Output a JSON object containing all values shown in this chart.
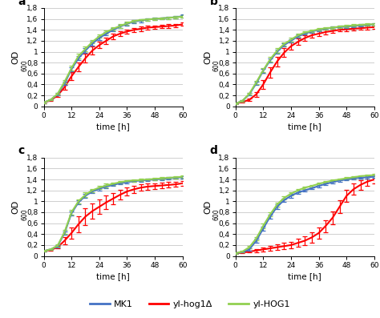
{
  "time_a_mk1": [
    0,
    3,
    6,
    9,
    12,
    15,
    18,
    21,
    24,
    27,
    30,
    33,
    36,
    39,
    42,
    45,
    48,
    51,
    54,
    57,
    60
  ],
  "time_a_hog1": [
    0,
    3,
    6,
    9,
    12,
    15,
    18,
    21,
    24,
    27,
    30,
    33,
    36,
    39,
    42,
    45,
    48,
    51,
    54,
    57,
    60
  ],
  "time_a_HOG1": [
    0,
    3,
    6,
    9,
    12,
    15,
    18,
    21,
    24,
    27,
    30,
    33,
    36,
    39,
    42,
    45,
    48,
    51,
    54,
    57,
    60
  ],
  "panels": {
    "a": {
      "MK1": {
        "y": [
          0.07,
          0.12,
          0.22,
          0.42,
          0.68,
          0.88,
          1.02,
          1.15,
          1.25,
          1.33,
          1.4,
          1.46,
          1.51,
          1.55,
          1.57,
          1.59,
          1.6,
          1.61,
          1.62,
          1.63,
          1.65
        ],
        "err": [
          0.01,
          0.01,
          0.02,
          0.03,
          0.04,
          0.04,
          0.04,
          0.04,
          0.03,
          0.03,
          0.03,
          0.03,
          0.03,
          0.03,
          0.03,
          0.02,
          0.02,
          0.02,
          0.02,
          0.02,
          0.03
        ]
      },
      "hog1": {
        "y": [
          0.07,
          0.11,
          0.2,
          0.35,
          0.55,
          0.72,
          0.88,
          1.02,
          1.12,
          1.2,
          1.28,
          1.33,
          1.37,
          1.4,
          1.42,
          1.44,
          1.45,
          1.46,
          1.47,
          1.48,
          1.5
        ],
        "err": [
          0.01,
          0.01,
          0.02,
          0.04,
          0.07,
          0.08,
          0.08,
          0.07,
          0.06,
          0.06,
          0.05,
          0.05,
          0.04,
          0.04,
          0.04,
          0.03,
          0.03,
          0.03,
          0.03,
          0.03,
          0.03
        ]
      },
      "HOG1": {
        "y": [
          0.07,
          0.12,
          0.23,
          0.45,
          0.7,
          0.92,
          1.05,
          1.18,
          1.28,
          1.36,
          1.42,
          1.47,
          1.52,
          1.56,
          1.58,
          1.59,
          1.6,
          1.61,
          1.62,
          1.63,
          1.64
        ],
        "err": [
          0.01,
          0.01,
          0.02,
          0.03,
          0.04,
          0.04,
          0.04,
          0.03,
          0.03,
          0.03,
          0.03,
          0.03,
          0.03,
          0.02,
          0.02,
          0.02,
          0.02,
          0.02,
          0.02,
          0.02,
          0.02
        ]
      }
    },
    "b": {
      "MK1": {
        "y": [
          0.05,
          0.1,
          0.22,
          0.42,
          0.65,
          0.84,
          1.0,
          1.12,
          1.2,
          1.28,
          1.33,
          1.37,
          1.4,
          1.42,
          1.44,
          1.45,
          1.46,
          1.47,
          1.48,
          1.49,
          1.5
        ],
        "err": [
          0.01,
          0.01,
          0.02,
          0.03,
          0.04,
          0.04,
          0.04,
          0.03,
          0.03,
          0.03,
          0.02,
          0.02,
          0.02,
          0.02,
          0.02,
          0.02,
          0.02,
          0.02,
          0.02,
          0.02,
          0.02
        ]
      },
      "hog1": {
        "y": [
          0.05,
          0.08,
          0.12,
          0.22,
          0.4,
          0.62,
          0.82,
          0.98,
          1.1,
          1.18,
          1.25,
          1.3,
          1.33,
          1.36,
          1.38,
          1.4,
          1.41,
          1.42,
          1.43,
          1.44,
          1.45
        ],
        "err": [
          0.01,
          0.01,
          0.02,
          0.04,
          0.08,
          0.1,
          0.09,
          0.08,
          0.07,
          0.06,
          0.05,
          0.05,
          0.04,
          0.04,
          0.04,
          0.03,
          0.03,
          0.03,
          0.03,
          0.03,
          0.03
        ]
      },
      "HOG1": {
        "y": [
          0.05,
          0.1,
          0.23,
          0.44,
          0.66,
          0.86,
          1.02,
          1.14,
          1.22,
          1.3,
          1.35,
          1.38,
          1.41,
          1.43,
          1.44,
          1.46,
          1.47,
          1.48,
          1.49,
          1.5,
          1.5
        ],
        "err": [
          0.01,
          0.01,
          0.02,
          0.03,
          0.04,
          0.04,
          0.04,
          0.03,
          0.03,
          0.03,
          0.02,
          0.02,
          0.02,
          0.02,
          0.02,
          0.02,
          0.02,
          0.02,
          0.02,
          0.02,
          0.02
        ]
      }
    },
    "c": {
      "MK1": {
        "y": [
          0.09,
          0.12,
          0.18,
          0.42,
          0.78,
          0.98,
          1.1,
          1.18,
          1.23,
          1.27,
          1.3,
          1.33,
          1.35,
          1.37,
          1.38,
          1.39,
          1.4,
          1.41,
          1.42,
          1.43,
          1.44
        ],
        "err": [
          0.01,
          0.01,
          0.02,
          0.03,
          0.04,
          0.04,
          0.04,
          0.03,
          0.03,
          0.03,
          0.02,
          0.02,
          0.02,
          0.02,
          0.02,
          0.02,
          0.02,
          0.02,
          0.02,
          0.02,
          0.02
        ]
      },
      "hog1": {
        "y": [
          0.09,
          0.11,
          0.16,
          0.28,
          0.42,
          0.58,
          0.72,
          0.82,
          0.9,
          0.98,
          1.05,
          1.12,
          1.18,
          1.22,
          1.25,
          1.27,
          1.28,
          1.29,
          1.3,
          1.31,
          1.33
        ],
        "err": [
          0.01,
          0.01,
          0.02,
          0.06,
          0.1,
          0.14,
          0.15,
          0.14,
          0.13,
          0.12,
          0.1,
          0.09,
          0.08,
          0.07,
          0.06,
          0.06,
          0.05,
          0.05,
          0.05,
          0.04,
          0.04
        ]
      },
      "HOG1": {
        "y": [
          0.09,
          0.12,
          0.19,
          0.44,
          0.8,
          1.0,
          1.12,
          1.2,
          1.25,
          1.29,
          1.32,
          1.35,
          1.37,
          1.38,
          1.39,
          1.4,
          1.41,
          1.42,
          1.43,
          1.44,
          1.45
        ],
        "err": [
          0.01,
          0.01,
          0.02,
          0.03,
          0.04,
          0.04,
          0.04,
          0.03,
          0.03,
          0.03,
          0.02,
          0.02,
          0.02,
          0.02,
          0.02,
          0.02,
          0.02,
          0.02,
          0.02,
          0.02,
          0.02
        ]
      }
    },
    "d": {
      "MK1": {
        "y": [
          0.05,
          0.07,
          0.12,
          0.28,
          0.5,
          0.72,
          0.9,
          1.02,
          1.1,
          1.16,
          1.2,
          1.24,
          1.28,
          1.32,
          1.35,
          1.38,
          1.4,
          1.42,
          1.43,
          1.44,
          1.45
        ],
        "err": [
          0.01,
          0.01,
          0.02,
          0.03,
          0.04,
          0.04,
          0.04,
          0.03,
          0.03,
          0.03,
          0.02,
          0.02,
          0.02,
          0.02,
          0.02,
          0.02,
          0.02,
          0.02,
          0.02,
          0.02,
          0.02
        ]
      },
      "hog1": {
        "y": [
          0.05,
          0.06,
          0.08,
          0.1,
          0.12,
          0.14,
          0.16,
          0.18,
          0.2,
          0.24,
          0.28,
          0.34,
          0.42,
          0.55,
          0.7,
          0.9,
          1.1,
          1.22,
          1.3,
          1.36,
          1.4
        ],
        "err": [
          0.01,
          0.01,
          0.02,
          0.03,
          0.04,
          0.05,
          0.05,
          0.06,
          0.06,
          0.07,
          0.08,
          0.09,
          0.1,
          0.11,
          0.12,
          0.12,
          0.11,
          0.1,
          0.09,
          0.08,
          0.08
        ]
      },
      "HOG1": {
        "y": [
          0.05,
          0.08,
          0.16,
          0.32,
          0.55,
          0.76,
          0.94,
          1.06,
          1.14,
          1.2,
          1.25,
          1.28,
          1.32,
          1.35,
          1.38,
          1.4,
          1.42,
          1.44,
          1.46,
          1.47,
          1.48
        ],
        "err": [
          0.01,
          0.01,
          0.02,
          0.03,
          0.04,
          0.04,
          0.04,
          0.03,
          0.03,
          0.03,
          0.02,
          0.02,
          0.02,
          0.02,
          0.02,
          0.02,
          0.02,
          0.02,
          0.02,
          0.02,
          0.02
        ]
      }
    }
  },
  "colors": {
    "MK1": "#4472C4",
    "hog1": "#FF0000",
    "HOG1": "#92D050"
  },
  "legend_labels": {
    "MK1": "MK1",
    "hog1": "yl-hog1Δ",
    "HOG1": "yl-HOG1"
  },
  "xlabel": "time [h]",
  "ylim": [
    0,
    1.8
  ],
  "xlim": [
    0,
    60
  ],
  "xticks": [
    0,
    12,
    24,
    36,
    48,
    60
  ],
  "yticks": [
    0,
    0.2,
    0.4,
    0.6,
    0.8,
    1.0,
    1.2,
    1.4,
    1.6,
    1.8
  ],
  "ytick_labels": [
    "0",
    "0,2",
    "0,4",
    "0,6",
    "0,8",
    "1",
    "1,2",
    "1,4",
    "1,6",
    "1,8"
  ],
  "panel_labels": [
    "a",
    "b",
    "c",
    "d"
  ],
  "bg_color": "#FFFFFF",
  "grid_color": "#C8C8C8",
  "line_width": 1.5,
  "elinewidth": 0.9,
  "capsize": 2,
  "capthick": 0.9
}
